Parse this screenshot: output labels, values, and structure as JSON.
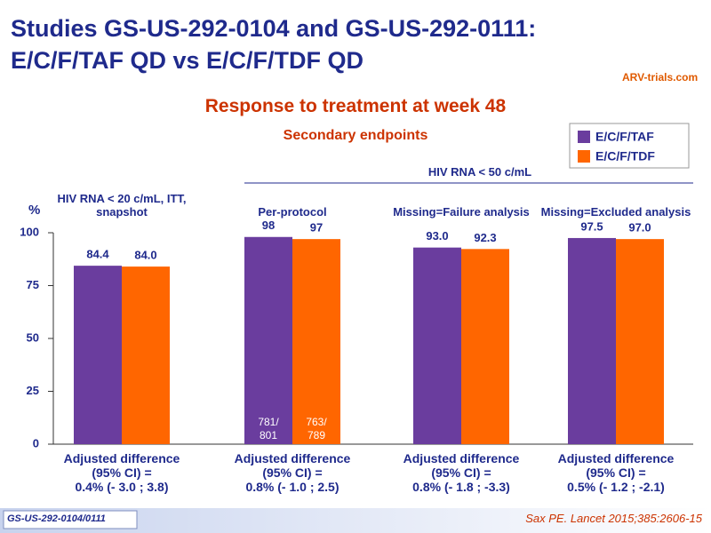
{
  "slide": {
    "title_lines": [
      "Studies GS-US-292-0104 and GS-US-292-0111:",
      "E/C/F/TAF QD vs E/C/F/TDF QD"
    ],
    "logo": "ARV-trials.com",
    "study_tag": "GS-US-292-0104/0111",
    "reference": "Sax PE. Lancet 2015;385:2606-15"
  },
  "chart_data": {
    "type": "bar",
    "title": "Response to treatment at week 48",
    "subtitle": "Secondary endpoints",
    "y_label": "%",
    "group_header": "HIV RNA < 50 c/mL",
    "categories": [
      "HIV RNA < 20 c/mL, ITT, snapshot",
      "Per-protocol",
      "Missing=Failure analysis",
      "Missing=Excluded analysis"
    ],
    "series": [
      {
        "name": "E/C/F/TAF",
        "color": "#6a3d9e",
        "values": [
          84.4,
          98,
          93.0,
          97.5
        ],
        "value_labels": [
          "84.4",
          "98",
          "93.0",
          "97.5"
        ]
      },
      {
        "name": "E/C/F/TDF",
        "color": "#ff6600",
        "values": [
          84.0,
          97,
          92.3,
          97.0
        ],
        "value_labels": [
          "84.0",
          "97",
          "92.3",
          "97.0"
        ]
      }
    ],
    "inner_labels": [
      [
        "781/",
        "801"
      ],
      [
        "763/",
        "789"
      ]
    ],
    "annotations": [
      [
        "Adjusted difference",
        "(95% CI) =",
        "0.4% (- 3.0 ; 3.8)"
      ],
      [
        "Adjusted difference",
        "(95% CI) =",
        "0.8% (- 1.0 ; 2.5)"
      ],
      [
        "Adjusted difference",
        "(95% CI) =",
        "0.8% (- 1.8 ; -3.3)"
      ],
      [
        "Adjusted difference",
        "(95% CI) =",
        "0.5% (- 1.2 ; -2.1)"
      ]
    ],
    "ylim": [
      0,
      100
    ],
    "yticks": [
      0,
      25,
      50,
      75,
      100
    ],
    "grid": false
  }
}
